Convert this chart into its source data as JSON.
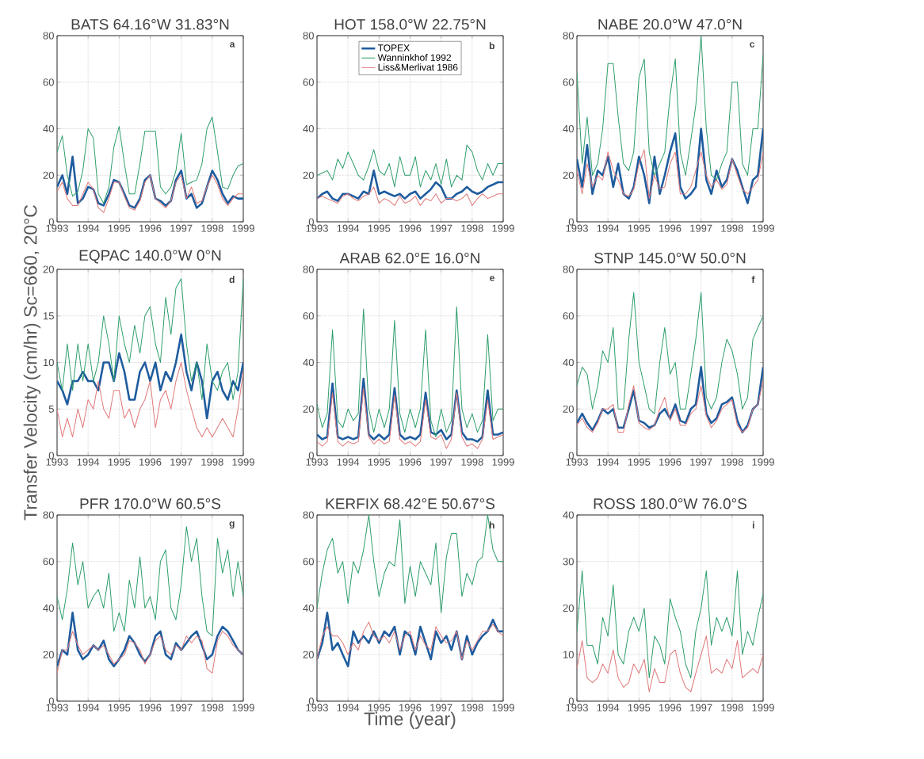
{
  "chart_data": [
    {
      "type": "line",
      "title": "BATS 64.16°W 31.83°N",
      "annotations": [
        "a"
      ],
      "grid": true,
      "xlim": [
        1993,
        1999
      ],
      "xticks": [
        1993,
        1994,
        1995,
        1996,
        1997,
        1998,
        1999
      ],
      "ylim": [
        0,
        80
      ],
      "yticks": [
        0,
        20,
        40,
        60,
        80
      ],
      "x": [
        1993,
        1993.17,
        1993.33,
        1993.5,
        1993.67,
        1993.83,
        1994,
        1994.17,
        1994.33,
        1994.5,
        1994.67,
        1994.83,
        1995,
        1995.17,
        1995.33,
        1995.5,
        1995.67,
        1995.83,
        1996,
        1996.17,
        1996.33,
        1996.5,
        1996.67,
        1996.83,
        1997,
        1997.17,
        1997.33,
        1997.5,
        1997.67,
        1997.83,
        1998,
        1998.17,
        1998.33,
        1998.5,
        1998.67,
        1998.83,
        1999
      ],
      "series": [
        {
          "color": "#1f5c9e",
          "values": [
            15,
            20,
            12,
            28,
            8,
            10,
            15,
            14,
            8,
            7,
            12,
            18,
            17,
            12,
            7,
            6,
            10,
            18,
            20,
            10,
            9,
            7,
            9,
            18,
            22,
            10,
            12,
            6,
            8,
            15,
            22,
            18,
            12,
            8,
            11,
            10,
            10
          ]
        },
        {
          "color": "#2e9e6b",
          "values": [
            30,
            37,
            20,
            11,
            13,
            22,
            40,
            36,
            12,
            8,
            15,
            32,
            41,
            25,
            12,
            12,
            25,
            39,
            39,
            39,
            15,
            12,
            15,
            22,
            38,
            16,
            17,
            18,
            25,
            40,
            45,
            30,
            15,
            14,
            20,
            24,
            25
          ]
        },
        {
          "color": "#e0787a",
          "values": [
            13,
            17,
            10,
            7,
            7,
            12,
            17,
            14,
            6,
            4,
            10,
            17,
            17,
            11,
            6,
            5,
            9,
            17,
            20,
            10,
            8,
            6,
            9,
            17,
            20,
            10,
            15,
            8,
            9,
            15,
            20,
            16,
            10,
            7,
            10,
            12,
            12
          ]
        }
      ]
    },
    {
      "type": "line",
      "title": "HOT 158.0°W 22.75°N",
      "annotations": [
        "b"
      ],
      "grid": true,
      "legend": "top",
      "xlim": [
        1993,
        1999
      ],
      "xticks": [
        1993,
        1994,
        1995,
        1996,
        1997,
        1998,
        1999
      ],
      "ylim": [
        0,
        80
      ],
      "yticks": [
        0,
        20,
        40,
        60,
        80
      ],
      "x": [
        1993,
        1993.17,
        1993.33,
        1993.5,
        1993.67,
        1993.83,
        1994,
        1994.17,
        1994.33,
        1994.5,
        1994.67,
        1994.83,
        1995,
        1995.17,
        1995.33,
        1995.5,
        1995.67,
        1995.83,
        1996,
        1996.17,
        1996.33,
        1996.5,
        1996.67,
        1996.83,
        1997,
        1997.17,
        1997.33,
        1997.5,
        1997.67,
        1997.83,
        1998,
        1998.17,
        1998.33,
        1998.5,
        1998.67,
        1998.83,
        1999
      ],
      "series": [
        {
          "name": "TOPEX",
          "color": "#1f5c9e",
          "values": [
            10,
            12,
            13,
            10,
            9,
            12,
            12,
            11,
            10,
            13,
            12,
            22,
            12,
            13,
            12,
            11,
            12,
            10,
            12,
            13,
            10,
            12,
            14,
            17,
            15,
            10,
            10,
            12,
            13,
            15,
            13,
            12,
            13,
            15,
            16,
            17,
            17
          ]
        },
        {
          "name": "Wanninkhof 1992",
          "color": "#2e9e6b",
          "values": [
            20,
            21,
            22,
            18,
            27,
            23,
            30,
            25,
            20,
            18,
            24,
            31,
            22,
            20,
            25,
            15,
            28,
            20,
            20,
            28,
            15,
            22,
            18,
            25,
            16,
            27,
            15,
            20,
            18,
            33,
            30,
            22,
            18,
            25,
            20,
            25,
            25
          ]
        },
        {
          "name": "Liss&Merlivat 1986",
          "color": "#e0787a",
          "values": [
            10,
            11,
            10,
            9,
            8,
            11,
            12,
            10,
            9,
            11,
            12,
            15,
            8,
            10,
            9,
            7,
            11,
            8,
            9,
            11,
            7,
            10,
            9,
            12,
            8,
            10,
            10,
            9,
            10,
            12,
            7,
            10,
            12,
            10,
            11,
            12,
            12
          ]
        }
      ]
    },
    {
      "type": "line",
      "title": "NABE 20.0°W 47.0°N",
      "annotations": [
        "c"
      ],
      "grid": true,
      "xlim": [
        1993,
        1999
      ],
      "xticks": [
        1993,
        1994,
        1995,
        1996,
        1997,
        1998,
        1999
      ],
      "ylim": [
        0,
        80
      ],
      "yticks": [
        0,
        20,
        40,
        60,
        80
      ],
      "x": [
        1993,
        1993.17,
        1993.33,
        1993.5,
        1993.67,
        1993.83,
        1994,
        1994.17,
        1994.33,
        1994.5,
        1994.67,
        1994.83,
        1995,
        1995.17,
        1995.33,
        1995.5,
        1995.67,
        1995.83,
        1996,
        1996.17,
        1996.33,
        1996.5,
        1996.67,
        1996.83,
        1997,
        1997.17,
        1997.33,
        1997.5,
        1997.67,
        1997.83,
        1998,
        1998.17,
        1998.33,
        1998.5,
        1998.67,
        1998.83,
        1999
      ],
      "series": [
        {
          "color": "#1f5c9e",
          "values": [
            27,
            15,
            33,
            12,
            22,
            20,
            28,
            15,
            25,
            12,
            10,
            15,
            28,
            20,
            8,
            28,
            12,
            20,
            30,
            38,
            15,
            10,
            12,
            15,
            40,
            18,
            12,
            22,
            15,
            18,
            27,
            22,
            15,
            8,
            18,
            20,
            40
          ]
        },
        {
          "color": "#2e9e6b",
          "values": [
            64,
            25,
            45,
            20,
            25,
            40,
            68,
            68,
            45,
            25,
            22,
            30,
            62,
            70,
            30,
            20,
            25,
            30,
            54,
            70,
            30,
            20,
            35,
            50,
            80,
            40,
            20,
            18,
            25,
            30,
            60,
            60,
            25,
            20,
            40,
            40,
            72
          ]
        },
        {
          "color": "#e0787a",
          "values": [
            22,
            12,
            25,
            15,
            20,
            18,
            30,
            22,
            18,
            12,
            11,
            14,
            25,
            31,
            10,
            20,
            14,
            15,
            25,
            30,
            12,
            12,
            15,
            22,
            30,
            20,
            15,
            18,
            14,
            16,
            27,
            20,
            14,
            12,
            15,
            18,
            30
          ]
        }
      ]
    },
    {
      "type": "line",
      "title": "EQPAC 140.0°W 0°N",
      "annotations": [
        "d"
      ],
      "ylabel": "Transfer Velocity (cm/hr) Sc=660, 20°C",
      "grid": true,
      "xlim": [
        1993,
        1999
      ],
      "xticks": [
        1993,
        1994,
        1995,
        1996,
        1997,
        1998,
        1999
      ],
      "ylim": [
        0,
        20
      ],
      "yticks": [
        0,
        5,
        10,
        15,
        20
      ],
      "x": [
        1993,
        1993.17,
        1993.33,
        1993.5,
        1993.67,
        1993.83,
        1994,
        1994.17,
        1994.33,
        1994.5,
        1994.67,
        1994.83,
        1995,
        1995.17,
        1995.33,
        1995.5,
        1995.67,
        1995.83,
        1996,
        1996.17,
        1996.33,
        1996.5,
        1996.67,
        1996.83,
        1997,
        1997.17,
        1997.33,
        1997.5,
        1997.67,
        1997.83,
        1998,
        1998.17,
        1998.33,
        1998.5,
        1998.67,
        1998.83,
        1999
      ],
      "series": [
        {
          "color": "#1f5c9e",
          "values": [
            8,
            7,
            5.5,
            8,
            8,
            9,
            8,
            8,
            7,
            10,
            10,
            8,
            11,
            9,
            6,
            6,
            9,
            10,
            8,
            10,
            7,
            9,
            8,
            10,
            13,
            9,
            7,
            10,
            8,
            4,
            8,
            9,
            7,
            6,
            8,
            7,
            10
          ]
        },
        {
          "color": "#2e9e6b",
          "values": [
            10,
            7,
            12,
            7,
            12,
            8,
            12,
            8,
            10,
            15,
            12,
            8,
            15,
            12,
            10,
            14,
            11,
            15,
            16,
            12,
            10,
            17,
            13,
            18,
            19,
            12,
            8,
            10,
            6,
            12,
            8,
            7,
            9,
            10,
            6,
            9,
            19
          ]
        },
        {
          "color": "#e0787a",
          "values": [
            5,
            2,
            4,
            2,
            5,
            3,
            6,
            5,
            8,
            5,
            4,
            7,
            7,
            4,
            5,
            3,
            5,
            6,
            8,
            3,
            6,
            7,
            5,
            8,
            10,
            7,
            5,
            3,
            2,
            3,
            2,
            3,
            4,
            3,
            2,
            5,
            9
          ]
        }
      ]
    },
    {
      "type": "line",
      "title": "ARAB 62.0°E 16.0°N",
      "annotations": [
        "e"
      ],
      "grid": true,
      "xlim": [
        1993,
        1999
      ],
      "xticks": [
        1993,
        1994,
        1995,
        1996,
        1997,
        1998,
        1999
      ],
      "ylim": [
        0,
        80
      ],
      "yticks": [
        0,
        20,
        40,
        60,
        80
      ],
      "x": [
        1993,
        1993.17,
        1993.33,
        1993.5,
        1993.67,
        1993.83,
        1994,
        1994.17,
        1994.33,
        1994.5,
        1994.67,
        1994.83,
        1995,
        1995.17,
        1995.33,
        1995.5,
        1995.67,
        1995.83,
        1996,
        1996.17,
        1996.33,
        1996.5,
        1996.67,
        1996.83,
        1997,
        1997.17,
        1997.33,
        1997.5,
        1997.67,
        1997.83,
        1998,
        1998.17,
        1998.33,
        1998.5,
        1998.67,
        1998.83,
        1999
      ],
      "series": [
        {
          "color": "#1f5c9e",
          "values": [
            9,
            7,
            8,
            31,
            8,
            7,
            8,
            7,
            8,
            33,
            9,
            7,
            9,
            7,
            9,
            29,
            9,
            7,
            8,
            7,
            9,
            27,
            10,
            9,
            11,
            7,
            9,
            28,
            10,
            7,
            7,
            6,
            8,
            28,
            9,
            9,
            10
          ]
        },
        {
          "color": "#2e9e6b",
          "values": [
            22,
            12,
            18,
            54,
            15,
            12,
            20,
            15,
            18,
            63,
            20,
            10,
            20,
            12,
            20,
            58,
            18,
            10,
            20,
            12,
            20,
            54,
            15,
            8,
            20,
            10,
            15,
            64,
            20,
            12,
            18,
            10,
            15,
            52,
            15,
            20,
            20
          ]
        },
        {
          "color": "#e0787a",
          "values": [
            6,
            4,
            6,
            27,
            6,
            4,
            6,
            5,
            6,
            29,
            8,
            5,
            7,
            5,
            6,
            26,
            7,
            5,
            6,
            4,
            6,
            24,
            8,
            7,
            9,
            3,
            7,
            27,
            8,
            4,
            5,
            3,
            7,
            24,
            7,
            8,
            9
          ]
        }
      ]
    },
    {
      "type": "line",
      "title": "STNP 145.0°W 50.0°N",
      "annotations": [
        "f"
      ],
      "grid": true,
      "xlim": [
        1993,
        1999
      ],
      "xticks": [
        1993,
        1994,
        1995,
        1996,
        1997,
        1998,
        1999
      ],
      "ylim": [
        0,
        80
      ],
      "yticks": [
        0,
        20,
        40,
        60,
        80
      ],
      "x": [
        1993,
        1993.17,
        1993.33,
        1993.5,
        1993.67,
        1993.83,
        1994,
        1994.17,
        1994.33,
        1994.5,
        1994.67,
        1994.83,
        1995,
        1995.17,
        1995.33,
        1995.5,
        1995.67,
        1995.83,
        1996,
        1996.17,
        1996.33,
        1996.5,
        1996.67,
        1996.83,
        1997,
        1997.17,
        1997.33,
        1997.5,
        1997.67,
        1997.83,
        1998,
        1998.17,
        1998.33,
        1998.5,
        1998.67,
        1998.83,
        1999
      ],
      "series": [
        {
          "color": "#1f5c9e",
          "values": [
            14,
            18,
            14,
            11,
            15,
            20,
            18,
            20,
            12,
            12,
            20,
            28,
            15,
            14,
            12,
            13,
            18,
            20,
            16,
            22,
            15,
            14,
            20,
            22,
            38,
            18,
            14,
            16,
            22,
            23,
            25,
            15,
            10,
            13,
            20,
            22,
            38
          ]
        },
        {
          "color": "#2e9e6b",
          "values": [
            30,
            38,
            35,
            20,
            30,
            45,
            40,
            55,
            20,
            20,
            50,
            70,
            40,
            30,
            20,
            18,
            40,
            55,
            35,
            40,
            20,
            20,
            35,
            50,
            70,
            25,
            20,
            25,
            40,
            50,
            45,
            35,
            20,
            25,
            50,
            55,
            60
          ]
        },
        {
          "color": "#e0787a",
          "values": [
            13,
            16,
            12,
            10,
            14,
            20,
            20,
            22,
            10,
            10,
            22,
            30,
            14,
            12,
            11,
            13,
            20,
            25,
            15,
            20,
            13,
            13,
            18,
            20,
            30,
            17,
            12,
            15,
            20,
            22,
            24,
            13,
            10,
            12,
            20,
            22,
            32
          ]
        }
      ]
    },
    {
      "type": "line",
      "title": "PFR 170.0°W 60.5°S",
      "annotations": [
        "g"
      ],
      "grid": true,
      "xlim": [
        1993,
        1999
      ],
      "xticks": [
        1993,
        1994,
        1995,
        1996,
        1997,
        1998,
        1999
      ],
      "ylim": [
        0,
        80
      ],
      "yticks": [
        0,
        20,
        40,
        60,
        80
      ],
      "x": [
        1993,
        1993.17,
        1993.33,
        1993.5,
        1993.67,
        1993.83,
        1994,
        1994.17,
        1994.33,
        1994.5,
        1994.67,
        1994.83,
        1995,
        1995.17,
        1995.33,
        1995.5,
        1995.67,
        1995.83,
        1996,
        1996.17,
        1996.33,
        1996.5,
        1996.67,
        1996.83,
        1997,
        1997.17,
        1997.33,
        1997.5,
        1997.67,
        1997.83,
        1998,
        1998.17,
        1998.33,
        1998.5,
        1998.67,
        1998.83,
        1999
      ],
      "series": [
        {
          "color": "#1f5c9e",
          "values": [
            15,
            22,
            20,
            38,
            22,
            18,
            20,
            24,
            22,
            26,
            18,
            15,
            18,
            22,
            28,
            25,
            20,
            17,
            20,
            28,
            30,
            20,
            18,
            25,
            22,
            25,
            28,
            30,
            24,
            18,
            20,
            28,
            32,
            30,
            26,
            22,
            20
          ]
        },
        {
          "color": "#2e9e6b",
          "values": [
            45,
            35,
            48,
            68,
            50,
            60,
            40,
            45,
            48,
            40,
            55,
            30,
            38,
            30,
            52,
            40,
            62,
            40,
            45,
            35,
            60,
            65,
            40,
            35,
            50,
            75,
            60,
            70,
            45,
            30,
            28,
            70,
            55,
            65,
            45,
            60,
            45
          ]
        },
        {
          "color": "#e0787a",
          "values": [
            12,
            22,
            22,
            30,
            24,
            20,
            22,
            24,
            22,
            24,
            20,
            16,
            18,
            20,
            26,
            25,
            22,
            16,
            20,
            26,
            28,
            22,
            20,
            24,
            22,
            28,
            25,
            28,
            26,
            14,
            12,
            26,
            30,
            28,
            24,
            22,
            20
          ]
        }
      ]
    },
    {
      "type": "line",
      "title": "KERFIX 68.42°E 50.67°S",
      "annotations": [
        "h"
      ],
      "xlabel": "Time (year)",
      "grid": true,
      "xlim": [
        1993,
        1999
      ],
      "xticks": [
        1993,
        1994,
        1995,
        1996,
        1997,
        1998,
        1999
      ],
      "ylim": [
        0,
        80
      ],
      "yticks": [
        0,
        20,
        40,
        60,
        80
      ],
      "x": [
        1993,
        1993.17,
        1993.33,
        1993.5,
        1993.67,
        1993.83,
        1994,
        1994.17,
        1994.33,
        1994.5,
        1994.67,
        1994.83,
        1995,
        1995.17,
        1995.33,
        1995.5,
        1995.67,
        1995.83,
        1996,
        1996.17,
        1996.33,
        1996.5,
        1996.67,
        1996.83,
        1997,
        1997.17,
        1997.33,
        1997.5,
        1997.67,
        1997.83,
        1998,
        1998.17,
        1998.33,
        1998.5,
        1998.67,
        1998.83,
        1999
      ],
      "series": [
        {
          "color": "#1f5c9e",
          "values": [
            18,
            25,
            38,
            22,
            25,
            20,
            15,
            30,
            25,
            28,
            25,
            30,
            25,
            30,
            28,
            32,
            20,
            30,
            28,
            20,
            32,
            25,
            18,
            30,
            25,
            28,
            22,
            30,
            18,
            28,
            20,
            25,
            28,
            30,
            35,
            30,
            30
          ]
        },
        {
          "color": "#2e9e6b",
          "values": [
            40,
            55,
            65,
            70,
            55,
            60,
            42,
            60,
            55,
            65,
            80,
            60,
            45,
            55,
            60,
            58,
            78,
            42,
            58,
            45,
            60,
            55,
            50,
            68,
            38,
            62,
            72,
            72,
            45,
            55,
            50,
            60,
            62,
            80,
            65,
            60,
            60
          ]
        },
        {
          "color": "#e0787a",
          "values": [
            18,
            28,
            32,
            28,
            28,
            25,
            20,
            25,
            22,
            30,
            34,
            28,
            26,
            28,
            25,
            30,
            22,
            28,
            30,
            22,
            28,
            24,
            22,
            32,
            28,
            25,
            26,
            30,
            18,
            26,
            22,
            26,
            30,
            30,
            33,
            30,
            28
          ]
        }
      ]
    },
    {
      "type": "line",
      "title": "ROSS 180.0°W 76.0°S",
      "annotations": [
        "i"
      ],
      "grid": true,
      "xlim": [
        1993,
        1999
      ],
      "xticks": [
        1993,
        1994,
        1995,
        1996,
        1997,
        1998,
        1999
      ],
      "ylim": [
        0,
        40
      ],
      "yticks": [
        0,
        10,
        20,
        30,
        40
      ],
      "x": [
        1993,
        1993.17,
        1993.33,
        1993.5,
        1993.67,
        1993.83,
        1994,
        1994.17,
        1994.33,
        1994.5,
        1994.67,
        1994.83,
        1995,
        1995.17,
        1995.33,
        1995.5,
        1995.67,
        1995.83,
        1996,
        1996.17,
        1996.33,
        1996.5,
        1996.67,
        1996.83,
        1997,
        1997.17,
        1997.33,
        1997.5,
        1997.67,
        1997.83,
        1998,
        1998.17,
        1998.33,
        1998.5,
        1998.67,
        1998.83,
        1999
      ],
      "series": [
        {
          "color": "#2e9e6b",
          "values": [
            15,
            28,
            12,
            12,
            8,
            18,
            14,
            25,
            10,
            8,
            15,
            18,
            15,
            20,
            5,
            14,
            12,
            8,
            22,
            18,
            15,
            8,
            5,
            15,
            20,
            28,
            12,
            18,
            15,
            18,
            14,
            28,
            10,
            15,
            12,
            18,
            23
          ]
        },
        {
          "color": "#e0787a",
          "values": [
            7,
            13,
            5,
            4,
            5,
            8,
            6,
            11,
            5,
            3,
            4,
            8,
            6,
            9,
            2,
            7,
            4,
            4,
            10,
            11,
            6,
            3,
            2,
            6,
            10,
            14,
            6,
            7,
            6,
            9,
            7,
            13,
            5,
            6,
            7,
            6,
            10
          ]
        }
      ]
    }
  ]
}
